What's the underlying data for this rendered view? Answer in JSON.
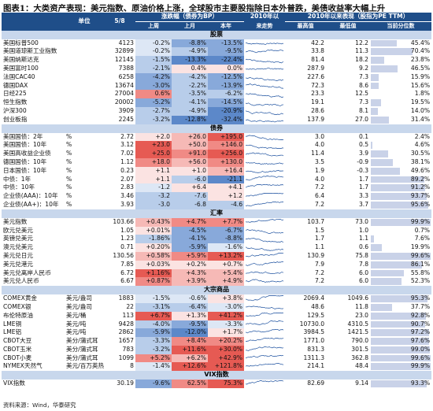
{
  "title": "图表1：大类资产表现：美元指数、原油价格上涨，全球股市主要股指除日本外普跌，美债收益率大幅上升",
  "header": {
    "unit": "单位",
    "date": "5/8",
    "change_group": "涨跌幅（债券为BP）",
    "week": "上周",
    "month": "上月",
    "ytd": "本年",
    "trend_top": "2010年以",
    "trend_bottom": "来走势",
    "stats_group": "2010年以来表现（股指为PE TTM）",
    "high": "最高值",
    "low": "最低值",
    "pct": "当前分位数"
  },
  "footer": "资料来源：Wind，华泰研究",
  "sections": [
    {
      "label": "股票",
      "rows": [
        {
          "name": "美国标普500",
          "unit": "",
          "value": "4123",
          "week": "-0.2%",
          "month": "-8.8%",
          "ytd": "-13.5%",
          "high": "42.2",
          "low": "12.2",
          "pct": "45.4%",
          "pct_v": 45.4,
          "c": [
            "b1",
            "b3",
            "b3"
          ]
        },
        {
          "name": "美国道琼斯工业指数",
          "unit": "",
          "value": "32899",
          "week": "-0.2%",
          "month": "-4.9%",
          "ytd": "-9.5%",
          "high": "33.8",
          "low": "11.3",
          "pct": "70.4%",
          "pct_v": 70.4,
          "c": [
            "b1",
            "b2",
            "b3"
          ]
        },
        {
          "name": "美国纳斯达克",
          "unit": "",
          "value": "12145",
          "week": "-1.5%",
          "month": "-13.3%",
          "ytd": "-22.4%",
          "high": "81.4",
          "low": "18.2",
          "pct": "23.8%",
          "pct_v": 23.8,
          "c": [
            "b2",
            "b4",
            "b4"
          ]
        },
        {
          "name": "美国富时100",
          "unit": "",
          "value": "7388",
          "week": "-2.1%",
          "month": "0.4%",
          "ytd": "0.0%",
          "high": "287.9",
          "low": "9.2",
          "pct": "46.5%",
          "pct_v": 46.5,
          "c": [
            "b2",
            "r1",
            "r1"
          ]
        },
        {
          "name": "法国CAC40",
          "unit": "",
          "value": "6258",
          "month": "-4.2%",
          "week": "-4.2%",
          "ytd": "-12.5%",
          "high": "227.6",
          "low": "7.3",
          "pct": "15.9%",
          "pct_v": 15.9,
          "c": [
            "b3",
            "b2",
            "b3"
          ]
        },
        {
          "name": "德国DAX",
          "unit": "",
          "value": "13674",
          "week": "-3.0%",
          "month": "-2.2%",
          "ytd": "-13.9%",
          "high": "72.3",
          "low": "8.6",
          "pct": "15.6%",
          "pct_v": 15.6,
          "c": [
            "b3",
            "b2",
            "b3"
          ]
        },
        {
          "name": "日经225",
          "unit": "",
          "value": "27004",
          "week": "0.6%",
          "month": "-3.5%",
          "ytd": "-6.2%",
          "high": "23.3",
          "low": "12.5",
          "pct": "1.8%",
          "pct_v": 1.8,
          "c": [
            "r3",
            "b2",
            "b2"
          ]
        },
        {
          "name": "恒生指数",
          "unit": "",
          "value": "20002",
          "week": "-5.2%",
          "month": "-4.1%",
          "ytd": "-14.5%",
          "high": "19.1",
          "low": "7.3",
          "pct": "19.5%",
          "pct_v": 19.5,
          "c": [
            "b3",
            "b2",
            "b3"
          ]
        },
        {
          "name": "沪深300",
          "unit": "",
          "value": "3909",
          "week": "-2.7%",
          "month": "-4.9%",
          "ytd": "-20.9%",
          "high": "28.6",
          "low": "8.1",
          "pct": "14.0%",
          "pct_v": 14.0,
          "c": [
            "b2",
            "b2",
            "b4"
          ]
        },
        {
          "name": "创业板指",
          "unit": "",
          "value": "2245",
          "week": "-3.2%",
          "month": "-12.8%",
          "ytd": "-32.4%",
          "high": "137.9",
          "low": "27.0",
          "pct": "31.4%",
          "pct_v": 31.4,
          "c": [
            "b2",
            "b4",
            "b4"
          ]
        }
      ]
    },
    {
      "label": "债券",
      "rows": [
        {
          "name": "美国国债：2年",
          "unit": "%",
          "value": "2.72",
          "week": "+2.0",
          "month": "+26.0",
          "ytd": "+195.0",
          "high": "3.0",
          "low": "0.1",
          "pct": "2.4%",
          "pct_v": 2.4,
          "c": [
            "r1",
            "r2",
            "r4"
          ]
        },
        {
          "name": "美国国债：10年",
          "unit": "%",
          "value": "3.12",
          "week": "+23.0",
          "month": "+50.0",
          "ytd": "+146.0",
          "high": "4.0",
          "low": "0.5",
          "pct": "4.6%",
          "pct_v": 4.6,
          "c": [
            "r4",
            "r2",
            "r3"
          ]
        },
        {
          "name": "美国高收益企业债",
          "unit": "%",
          "value": "7.02",
          "week": "+25.0",
          "month": "+91.0",
          "ytd": "+256.0",
          "high": "11.4",
          "low": "3.9",
          "pct": "30.5%",
          "pct_v": 30.5,
          "c": [
            "r4",
            "r3",
            "r4"
          ]
        },
        {
          "name": "德国国债：10年",
          "unit": "%",
          "value": "1.12",
          "week": "+18.0",
          "month": "+56.0",
          "ytd": "+130.0",
          "high": "3.5",
          "low": "-0.9",
          "pct": "38.1%",
          "pct_v": 38.1,
          "c": [
            "r3",
            "r2",
            "r3"
          ]
        },
        {
          "name": "日本国债：10年",
          "unit": "%",
          "value": "0.23",
          "week": "+1.1",
          "month": "+1.0",
          "ytd": "+16.4",
          "high": "1.9",
          "low": "-0.3",
          "pct": "49.6%",
          "pct_v": 49.6,
          "c": [
            "r1",
            "r1",
            "r2"
          ]
        },
        {
          "name": "中债：1年",
          "unit": "%",
          "value": "2.07",
          "week": "+1.1",
          "month": "-6.0",
          "ytd": "-21.1",
          "high": "4.0",
          "low": "1.7",
          "pct": "89.2%",
          "pct_v": 89.2,
          "c": [
            "r1",
            "b2",
            "b4"
          ]
        },
        {
          "name": "中债：10年",
          "unit": "%",
          "value": "2.83",
          "week": "-1.2",
          "month": "+6.4",
          "ytd": "+4.1",
          "high": "7.2",
          "low": "1.7",
          "pct": "91.2%",
          "pct_v": 91.2,
          "c": [
            "b1",
            "r1",
            "r1"
          ]
        },
        {
          "name": "企业债(AAA)：10年",
          "unit": "%",
          "value": "3.46",
          "week": "-3.2",
          "month": "-7.6",
          "ytd": "+1.2",
          "high": "6.4",
          "low": "3.3",
          "pct": "93.7%",
          "pct_v": 93.7,
          "c": [
            "b2",
            "b2",
            "r1"
          ]
        },
        {
          "name": "企业债(AA+)：10年",
          "unit": "%",
          "value": "3.93",
          "week": "-3.0",
          "month": "-6.8",
          "ytd": "-4.6",
          "high": "7.2",
          "low": "3.7",
          "pct": "95.6%",
          "pct_v": 95.6,
          "c": [
            "b2",
            "b2",
            "b2"
          ]
        }
      ]
    },
    {
      "label": "汇率",
      "rows": [
        {
          "name": "美元指数",
          "unit": "",
          "value": "103.66",
          "week": "+0.43%",
          "month": "+4.7%",
          "ytd": "+7.7%",
          "high": "103.7",
          "low": "73.0",
          "pct": "99.9%",
          "pct_v": 99.9,
          "c": [
            "r2",
            "r3",
            "r3"
          ]
        },
        {
          "name": "欧元兑美元",
          "unit": "",
          "value": "1.05",
          "week": "+0.01%",
          "month": "-4.5%",
          "ytd": "-6.7%",
          "high": "1.5",
          "low": "1.0",
          "pct": "0.7%",
          "pct_v": 0.7,
          "c": [
            "r1",
            "b3",
            "b3"
          ]
        },
        {
          "name": "英镑兑美元",
          "unit": "",
          "value": "1.23",
          "week": "-1.86%",
          "month": "-4.1%",
          "ytd": "-8.8%",
          "high": "1.7",
          "low": "1.1",
          "pct": "7.6%",
          "pct_v": 7.6,
          "c": [
            "b2",
            "b3",
            "b3"
          ]
        },
        {
          "name": "澳元兑美元",
          "unit": "",
          "value": "0.71",
          "week": "+0.20%",
          "month": "-5.9%",
          "ytd": "-1.6%",
          "high": "1.1",
          "low": "0.6",
          "pct": "19.9%",
          "pct_v": 19.9,
          "c": [
            "r1",
            "b3",
            "b1"
          ]
        },
        {
          "name": "美元兑日元",
          "unit": "",
          "value": "130.56",
          "week": "+0.58%",
          "month": "+5.9%",
          "ytd": "+13.2%",
          "high": "130.9",
          "low": "75.8",
          "pct": "99.6%",
          "pct_v": 99.6,
          "c": [
            "r2",
            "r3",
            "r4"
          ]
        },
        {
          "name": "美元兑港元",
          "unit": "",
          "value": "7.85",
          "week": "+0.03%",
          "month": "+0.2%",
          "ytd": "+0.7%",
          "high": "7.9",
          "low": "7.8",
          "pct": "86.1%",
          "pct_v": 86.1,
          "c": [
            "r1",
            "r1",
            "r1"
          ]
        },
        {
          "name": "美元兑离岸人民币",
          "unit": "",
          "value": "6.72",
          "week": "+1.16%",
          "month": "+4.3%",
          "ytd": "+5.4%",
          "high": "7.2",
          "low": "6.0",
          "pct": "55.8%",
          "pct_v": 55.8,
          "c": [
            "r4",
            "r2",
            "r2"
          ]
        },
        {
          "name": "美元兑人民币",
          "unit": "",
          "value": "6.67",
          "week": "+0.87%",
          "month": "+3.9%",
          "ytd": "+4.9%",
          "high": "7.2",
          "low": "6.0",
          "pct": "52.3%",
          "pct_v": 52.3,
          "c": [
            "r3",
            "r2",
            "r2"
          ]
        }
      ]
    },
    {
      "label": "大宗商品",
      "rows": [
        {
          "name": "COMEX黄金",
          "unit": "美元/盎司",
          "value": "1883",
          "week": "-1.5%",
          "month": "-0.6%",
          "ytd": "+3.8%",
          "high": "2069.4",
          "low": "1049.6",
          "pct": "95.3%",
          "pct_v": 95.3,
          "c": [
            "b1",
            "b1",
            "r1"
          ]
        },
        {
          "name": "COMEX银",
          "unit": "美元/盎司",
          "value": "22",
          "week": "-3.1%",
          "month": "-6.4%",
          "ytd": "-3.0%",
          "high": "48.6",
          "low": "11.8",
          "pct": "37.7%",
          "pct_v": 37.7,
          "c": [
            "b2",
            "b2",
            "b1"
          ]
        },
        {
          "name": "布伦特原油",
          "unit": "美元/桶",
          "value": "113",
          "week": "+6.7%",
          "month": "+1.3%",
          "ytd": "+41.2%",
          "high": "129.5",
          "low": "23.0",
          "pct": "92.8%",
          "pct_v": 92.8,
          "c": [
            "r4",
            "r1",
            "r4"
          ]
        },
        {
          "name": "LME铜",
          "unit": "美元/吨",
          "value": "9428",
          "week": "-4.0%",
          "month": "-9.5%",
          "ytd": "-3.3%",
          "high": "10730.0",
          "low": "4310.5",
          "pct": "90.7%",
          "pct_v": 90.7,
          "c": [
            "b2",
            "b3",
            "b1"
          ]
        },
        {
          "name": "LME铝",
          "unit": "美元/吨",
          "value": "2862",
          "week": "-5.9%",
          "month": "-12.0%",
          "ytd": "+1.7%",
          "high": "3984.5",
          "low": "1421.5",
          "pct": "97.2%",
          "pct_v": 97.2,
          "c": [
            "b3",
            "b4",
            "r1"
          ]
        },
        {
          "name": "CBOT大豆",
          "unit": "美分/蒲式耳",
          "value": "1657",
          "week": "-3.3%",
          "month": "+8.4%",
          "ytd": "+20.2%",
          "high": "1771.0",
          "low": "790.0",
          "pct": "97.6%",
          "pct_v": 97.6,
          "c": [
            "b2",
            "r3",
            "r3"
          ]
        },
        {
          "name": "CBOT玉米",
          "unit": "美分/蒲式耳",
          "value": "783",
          "week": "-3.2%",
          "month": "+11.6%",
          "ytd": "+30.0%",
          "high": "831.3",
          "low": "301.5",
          "pct": "99.0%",
          "pct_v": 99.0,
          "c": [
            "b2",
            "r4",
            "r4"
          ]
        },
        {
          "name": "CBOT小麦",
          "unit": "美分/蒲式耳",
          "value": "1099",
          "week": "+5.2%",
          "month": "+6.2%",
          "ytd": "+42.9%",
          "high": "1311.3",
          "low": "362.8",
          "pct": "99.6%",
          "pct_v": 99.6,
          "c": [
            "r3",
            "r2",
            "r4"
          ]
        },
        {
          "name": "NYMEX天然气",
          "unit": "美元/百万英热",
          "value": "8",
          "week": "-1.4%",
          "month": "+12.6%",
          "ytd": "+121.8%",
          "high": "214.1",
          "low": "48.4",
          "pct": "99.9%",
          "pct_v": 99.9,
          "c": [
            "b1",
            "r4",
            "r4"
          ]
        }
      ]
    },
    {
      "label": "VIX指数",
      "rows": [
        {
          "name": "VIX指数",
          "unit": "",
          "value": "30.19",
          "week": "-9.6%",
          "month": "62.5%",
          "ytd": "75.3%",
          "high": "82.69",
          "low": "9.14",
          "pct": "93.3%",
          "pct_v": 93.3,
          "c": [
            "b3",
            "r3",
            "r4"
          ]
        }
      ]
    }
  ]
}
